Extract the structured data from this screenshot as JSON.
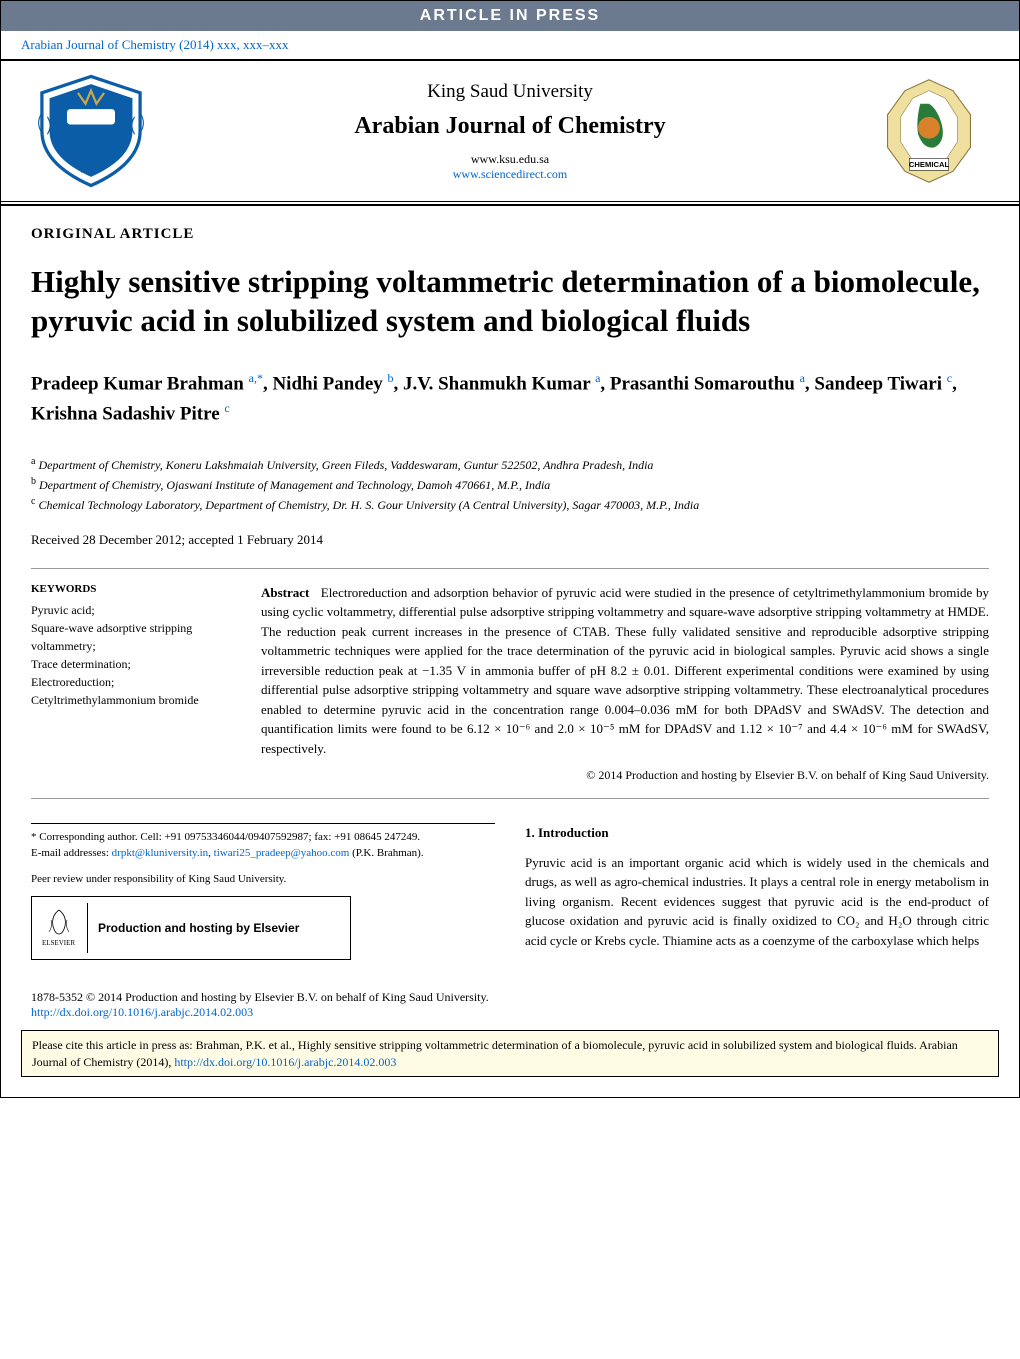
{
  "press_banner": "ARTICLE IN PRESS",
  "citation_link": "Arabian Journal of Chemistry (2014) xxx, xxx–xxx",
  "masthead": {
    "university": "King Saud University",
    "journal": "Arabian Journal of Chemistry",
    "url1": "www.ksu.edu.sa",
    "url2": "www.sciencedirect.com",
    "left_logo_colors": {
      "shield": "#0b5da8",
      "band": "#c9a94a",
      "outline": "#1a4a7a"
    },
    "right_logo_colors": {
      "outer": "#f0e0a0",
      "arabia": "#2a7a3a",
      "center": "#d9822b",
      "text": "CHEMICAL"
    }
  },
  "article_type": "ORIGINAL ARTICLE",
  "title": "Highly sensitive stripping voltammetric determination of a biomolecule, pyruvic acid in solubilized system and biological fluids",
  "authors_html": "Pradeep Kumar Brahman <sup>a,*</sup>, Nidhi Pandey <sup>b</sup>, J.V. Shanmukh Kumar <sup>a</sup>, Prasanthi Somarouthu <sup>a</sup>, Sandeep Tiwari <sup>c</sup>, Krishna Sadashiv Pitre <sup>c</sup>",
  "affiliations": [
    {
      "sup": "a",
      "text": "Department of Chemistry, Koneru Lakshmaiah University, Green Fileds, Vaddeswaram, Guntur 522502, Andhra Pradesh, India"
    },
    {
      "sup": "b",
      "text": "Department of Chemistry, Ojaswani Institute of Management and Technology, Damoh 470661, M.P., India"
    },
    {
      "sup": "c",
      "text": "Chemical Technology Laboratory, Department of Chemistry, Dr. H. S. Gour University (A Central University), Sagar 470003, M.P., India"
    }
  ],
  "received": "Received 28 December 2012; accepted 1 February 2014",
  "keywords_heading": "KEYWORDS",
  "keywords": [
    "Pyruvic acid;",
    "Square-wave adsorptive stripping voltammetry;",
    "Trace determination;",
    "Electroreduction;",
    "Cetyltrimethylammonium bromide"
  ],
  "abstract_label": "Abstract",
  "abstract_text": "Electroreduction and adsorption behavior of pyruvic acid were studied in the presence of cetyltrimethylammonium bromide by using cyclic voltammetry, differential pulse adsorptive stripping voltammetry and square-wave adsorptive stripping voltammetry at HMDE. The reduction peak current increases in the presence of CTAB. These fully validated sensitive and reproducible adsorptive stripping voltammetric techniques were applied for the trace determination of the pyruvic acid in biological samples. Pyruvic acid shows a single irreversible reduction peak at −1.35 V in ammonia buffer of pH 8.2 ± 0.01. Different experimental conditions were examined by using differential pulse adsorptive stripping voltammetry and square wave adsorptive stripping voltammetry. These electroanalytical procedures enabled to determine pyruvic acid in the concentration range 0.004–0.036 mM for both DPAdSV and SWAdSV. The detection and quantification limits were found to be 6.12 × 10⁻⁶ and 2.0 × 10⁻⁵ mM for DPAdSV and 1.12 × 10⁻⁷ and 4.4 × 10⁻⁶ mM for SWAdSV, respectively.",
  "abstract_copyright": "© 2014 Production and hosting by Elsevier B.V. on behalf of King Saud University.",
  "corresponding": {
    "line1": "* Corresponding author. Cell: +91 09753346044/09407592987; fax: +91 08645 247249.",
    "line2_prefix": "E-mail addresses: ",
    "email1": "drpkt@kluniversity.in",
    "email2": "tiwari25_pradeep@yahoo.com",
    "name": " (P.K. Brahman)."
  },
  "peer_review": "Peer review under responsibility of King Saud University.",
  "elsevier_label": "ELSEVIER",
  "hosting_text": "Production and hosting by Elsevier",
  "intro_heading": "1. Introduction",
  "intro_text": "Pyruvic acid is an important organic acid which is widely used in the chemicals and drugs, as well as agro-chemical industries. It plays a central role in energy metabolism in living organism. Recent evidences suggest that pyruvic acid is the end-product of glucose oxidation and pyruvic acid is finally oxidized to CO₂ and H₂O through citric acid cycle or Krebs cycle. Thiamine acts as a coenzyme of the carboxylase which helps",
  "footer_copyright_text": "1878-5352 © 2014 Production and hosting by Elsevier B.V. on behalf of King Saud University.",
  "footer_doi": "http://dx.doi.org/10.1016/j.arabjc.2014.02.003",
  "cite_box_text": "Please cite this article in press as: Brahman, P.K. et al., Highly sensitive stripping voltammetric determination of a biomolecule, pyruvic acid in solubilized system and biological fluids. Arabian Journal of Chemistry (2014), ",
  "cite_box_doi": "http://dx.doi.org/10.1016/j.arabjc.2014.02.003",
  "colors": {
    "banner_bg": "#6b7a8f",
    "link": "#0066cc",
    "cite_bg": "#fffce6"
  }
}
